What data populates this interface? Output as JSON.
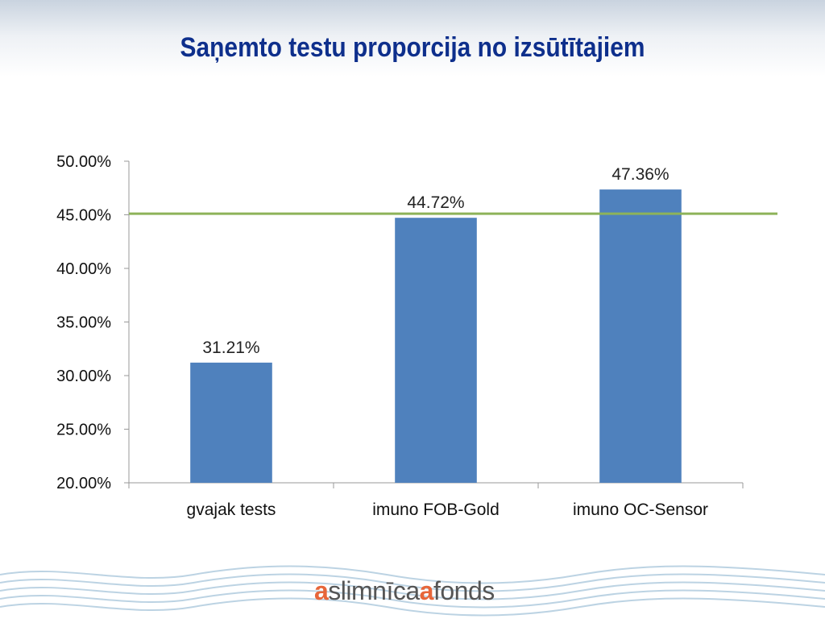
{
  "slide": {
    "title": "Saņemto testu proporcija no izsūtītajiem"
  },
  "chart_data": {
    "type": "bar",
    "title": "",
    "xlabel": "",
    "ylabel": "",
    "categories": [
      "gvajak tests",
      "imuno FOB-Gold",
      "imuno OC-Sensor"
    ],
    "values": [
      31.21,
      44.72,
      47.36
    ],
    "data_labels": [
      "31.21%",
      "44.72%",
      "47.36%"
    ],
    "ylim": [
      20,
      50
    ],
    "y_ticks": [
      20,
      25,
      30,
      35,
      40,
      45,
      50
    ],
    "y_tick_labels": [
      "20.00%",
      "25.00%",
      "30.00%",
      "35.00%",
      "40.00%",
      "45.00%",
      "50.00%"
    ],
    "reference_line": 45.1,
    "grid": false,
    "legend": "none",
    "colors": {
      "bar": "#4f81bd",
      "reference_line": "#8db359",
      "axis": "#999999"
    }
  },
  "footer": {
    "logo": {
      "mark1": "a",
      "text1": "slimnīca",
      "mark2": "a",
      "text2": "fonds"
    }
  }
}
